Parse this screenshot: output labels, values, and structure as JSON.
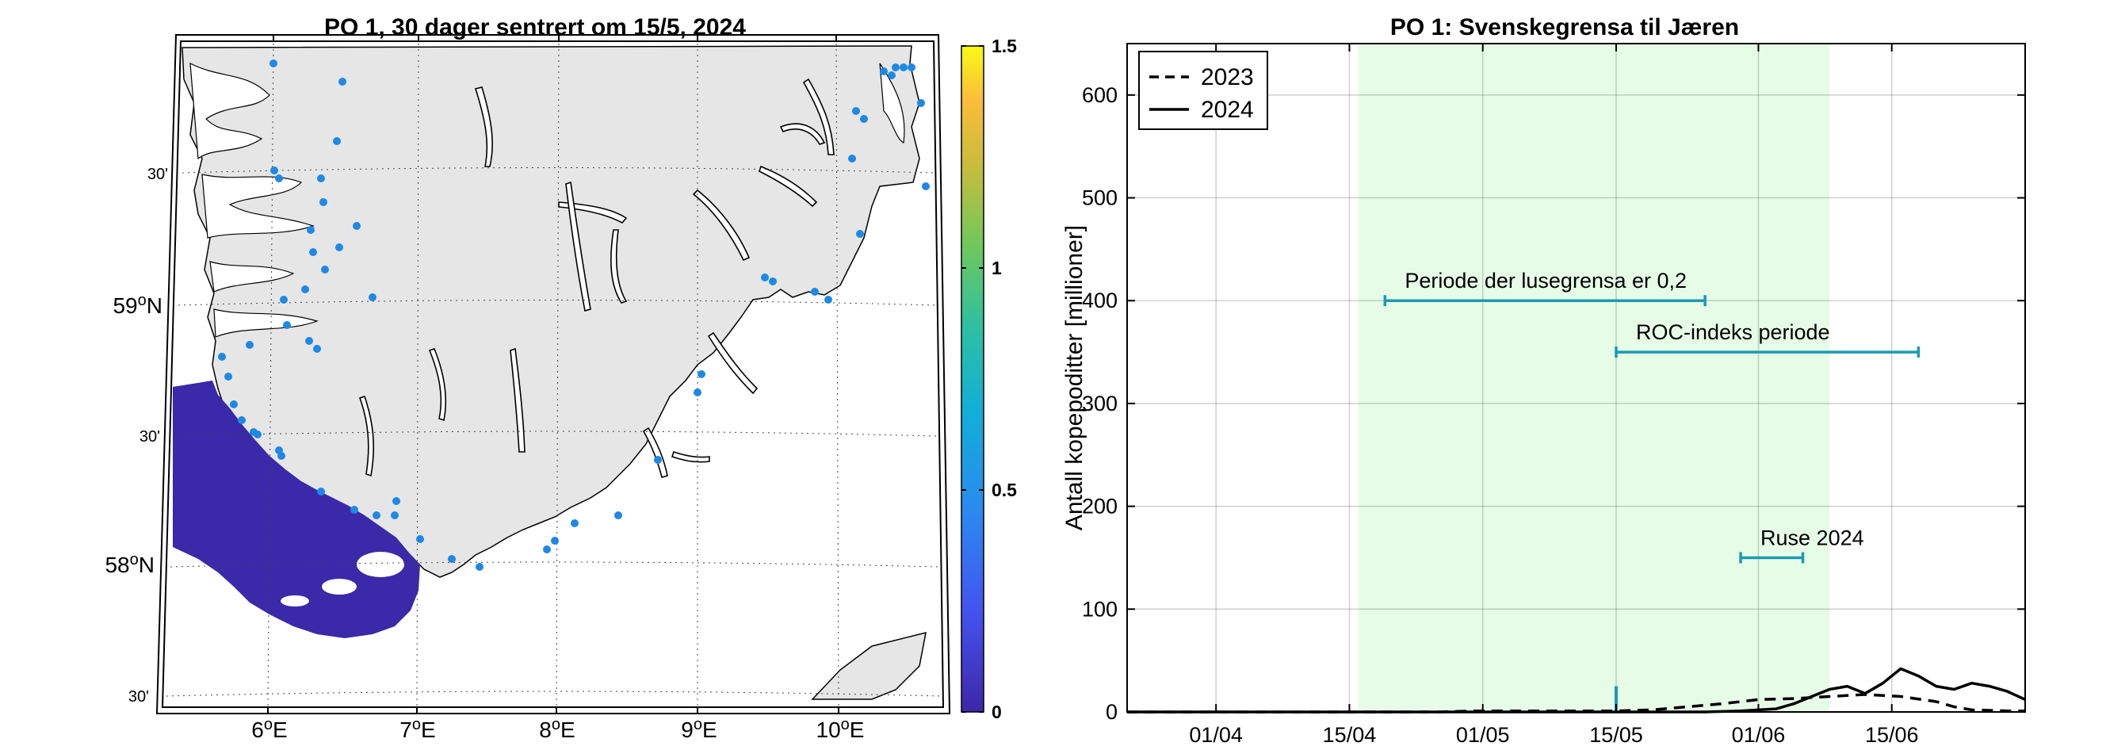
{
  "map": {
    "title": "PO 1, 30 dager sentrert om 15/5, 2024",
    "lon_labels": [
      {
        "deg": "6",
        "dir": "E"
      },
      {
        "deg": "7",
        "dir": "E"
      },
      {
        "deg": "8",
        "dir": "E"
      },
      {
        "deg": "9",
        "dir": "E"
      },
      {
        "deg": "10",
        "dir": "E"
      }
    ],
    "lat_labels": [
      {
        "kind": "min",
        "text": "30'"
      },
      {
        "kind": "deg",
        "deg": "59",
        "dir": "N"
      },
      {
        "kind": "min",
        "text": "30'"
      },
      {
        "kind": "deg",
        "deg": "58",
        "dir": "N"
      },
      {
        "kind": "min",
        "text": "30'"
      }
    ],
    "colorbar": {
      "min": 0,
      "max": 1.5,
      "ticks": [
        "0",
        "0.5",
        "1",
        "1.5"
      ],
      "tick_values": [
        0,
        0.5,
        1,
        1.5
      ]
    },
    "colors": {
      "land": "#e6e6e6",
      "sea": "#ffffff",
      "lice": "#3a29a8",
      "farm": "#1e88e5"
    }
  },
  "chart_data": {
    "type": "line",
    "title": "PO 1: Svenskegrensa til Jæren",
    "xlabel": "",
    "ylabel": "Antall kopepoditter [millioner]",
    "ylim": [
      0,
      650
    ],
    "yticks": [
      0,
      100,
      200,
      300,
      400,
      500,
      600
    ],
    "ytick_labels": [
      "0",
      "100",
      "200",
      "300",
      "400",
      "500",
      "600"
    ],
    "xlim_day": [
      81,
      182
    ],
    "xticks_day": [
      91,
      106,
      121,
      136,
      152,
      167
    ],
    "xtick_labels": [
      "01/04",
      "15/04",
      "01/05",
      "15/05",
      "01/06",
      "15/06"
    ],
    "grid": true,
    "legend": {
      "position": "top-left",
      "entries": [
        "2023",
        "2024"
      ]
    },
    "shaded_period_day": [
      107,
      160
    ],
    "series": [
      {
        "name": "2023",
        "style": "dashed",
        "x_day": [
          81,
          116,
          120,
          124,
          128,
          132,
          136,
          140,
          144,
          148,
          152,
          156,
          160,
          164,
          168,
          172,
          174,
          176,
          180,
          182
        ],
        "values": [
          0,
          0,
          1,
          1,
          1,
          1,
          1,
          2,
          5,
          8,
          12,
          13,
          15,
          17,
          15,
          10,
          5,
          2,
          1,
          1
        ]
      },
      {
        "name": "2024",
        "style": "solid",
        "x_day": [
          81,
          146,
          150,
          152,
          154,
          156,
          158,
          160,
          162,
          164,
          166,
          168,
          170,
          172,
          174,
          176,
          178,
          180,
          182
        ],
        "values": [
          0,
          0,
          1,
          2,
          3,
          8,
          15,
          22,
          25,
          18,
          28,
          42,
          35,
          25,
          22,
          28,
          25,
          20,
          12
        ]
      }
    ],
    "annotations": [
      {
        "label": "Periode der lusegrensa er 0,2",
        "x_day": [
          110,
          146
        ],
        "y": 400
      },
      {
        "label": "ROC-indeks periode",
        "x_day": [
          136,
          170
        ],
        "y": 350
      },
      {
        "label": "Ruse 2024",
        "x_day": [
          150,
          157
        ],
        "y": 150
      }
    ],
    "marker_day": 136,
    "marker_height": 25
  }
}
